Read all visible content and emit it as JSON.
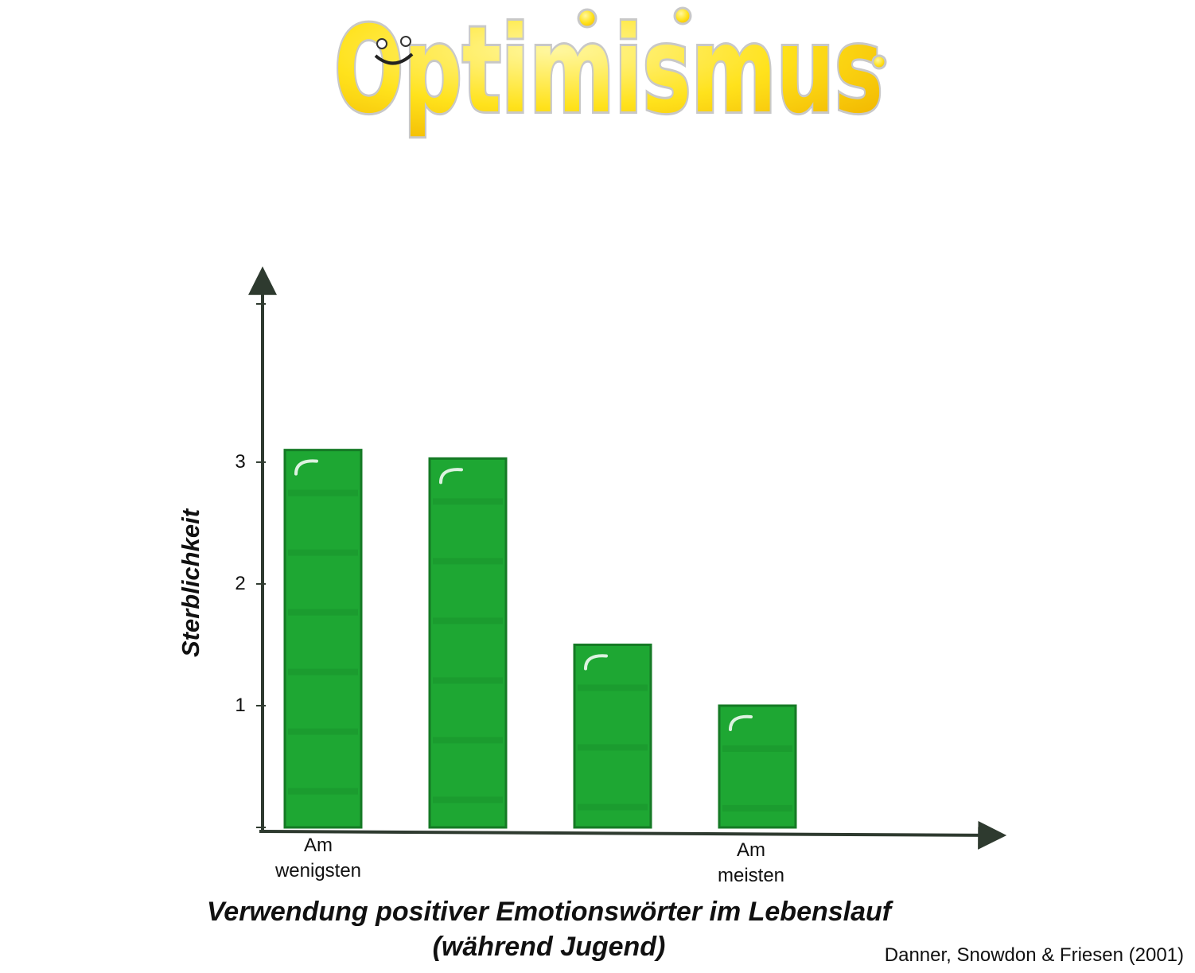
{
  "logo": {
    "text": "Optimismus",
    "fill_color": "#ffe21c",
    "outline_color": "#c8c8c8"
  },
  "chart_data": {
    "type": "bar",
    "title": "",
    "categories": [
      "Am wenigsten",
      "",
      "",
      "Am meisten"
    ],
    "category_labels": [
      [
        "Am",
        "wenigsten"
      ],
      [],
      [],
      [
        "Am",
        "meisten"
      ]
    ],
    "values": [
      3.1,
      3.03,
      1.5,
      1.0
    ],
    "ylabel": "Sterblichkeit",
    "xlabel": [
      "Verwendung positiver Emotionswörter im Lebenslauf",
      "(während Jugend)"
    ],
    "yticks": [
      1,
      2,
      3
    ],
    "ylim": [
      0,
      4.3
    ],
    "grid": false,
    "bar_color": "#1ea733",
    "bar_dark": "#157a25"
  },
  "source": "Danner, Snowdon & Friesen (2001)"
}
